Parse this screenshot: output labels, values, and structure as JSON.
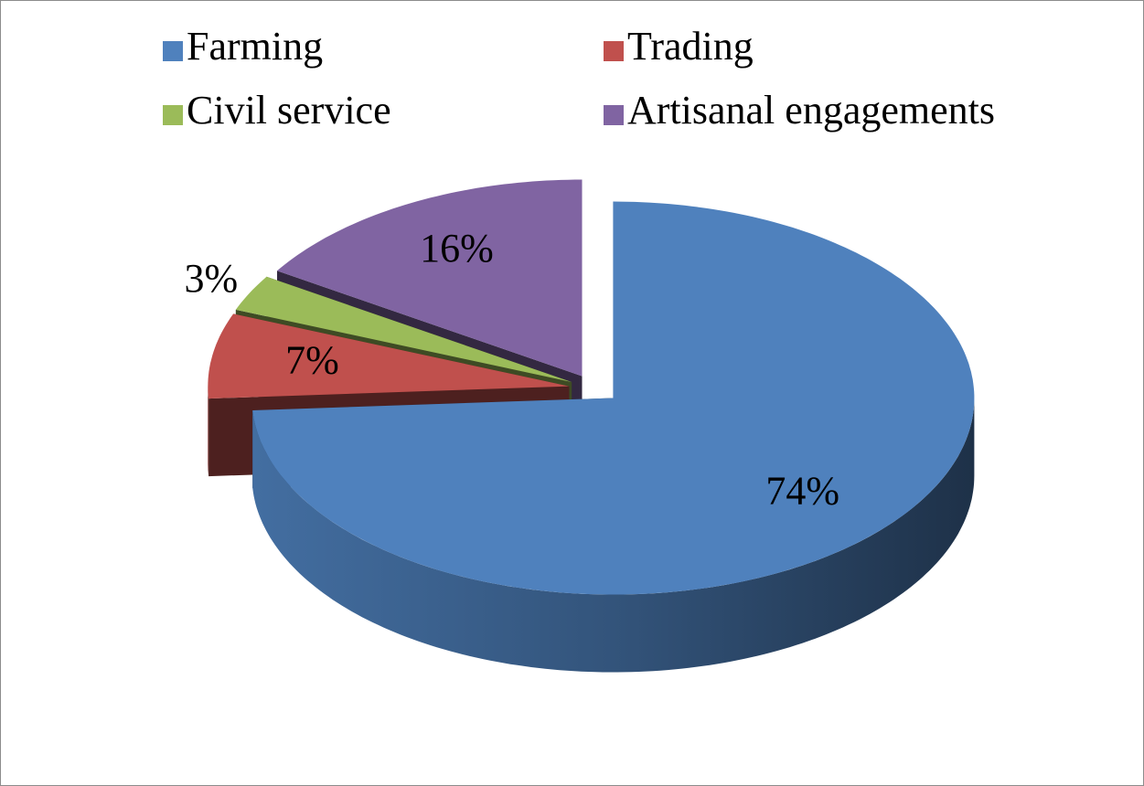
{
  "chart_data": {
    "type": "pie",
    "three_d": true,
    "categories": [
      "Farming",
      "Trading",
      "Civil service",
      "Artisanal engagements"
    ],
    "values": [
      74,
      7,
      3,
      16
    ],
    "value_labels": [
      "74%",
      "7%",
      "3%",
      "16%"
    ],
    "colors": [
      "#4f81bd",
      "#c0504d",
      "#9bbb59",
      "#8064a2"
    ],
    "legend": "top"
  }
}
